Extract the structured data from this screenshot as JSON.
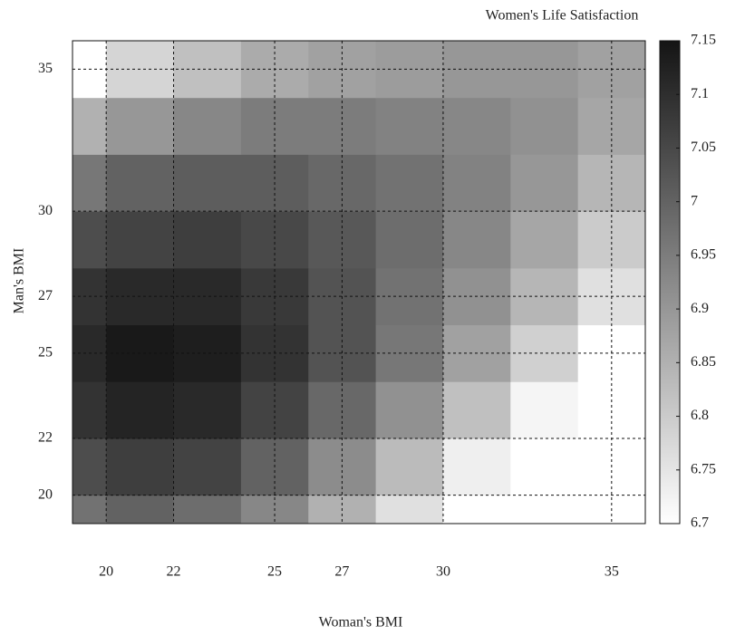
{
  "chart_data": {
    "type": "heatmap",
    "title": "Women's Life Satisfaction",
    "x_label": "Woman's BMI",
    "y_label": "Man's BMI",
    "x": [
      19,
      21,
      23,
      25,
      27,
      29,
      31,
      33,
      35
    ],
    "y": [
      19,
      21,
      23,
      25,
      27,
      29,
      31,
      33,
      35
    ],
    "values": [
      [
        6.97,
        7.0,
        6.98,
        6.93,
        6.85,
        6.76,
        6.67,
        6.6,
        6.55
      ],
      [
        7.04,
        7.07,
        7.06,
        7.0,
        6.92,
        6.83,
        6.73,
        6.65,
        6.6
      ],
      [
        7.09,
        7.12,
        7.11,
        7.06,
        6.99,
        6.91,
        6.82,
        6.72,
        6.66
      ],
      [
        7.11,
        7.14,
        7.13,
        7.09,
        7.03,
        6.96,
        6.88,
        6.79,
        6.7
      ],
      [
        7.09,
        7.11,
        7.11,
        7.08,
        7.03,
        6.97,
        6.91,
        6.84,
        6.76
      ],
      [
        7.04,
        7.06,
        7.07,
        7.05,
        7.02,
        6.98,
        6.93,
        6.87,
        6.8
      ],
      [
        6.96,
        7.0,
        7.01,
        7.01,
        6.99,
        6.97,
        6.94,
        6.9,
        6.84
      ],
      [
        6.85,
        6.9,
        6.93,
        6.95,
        6.95,
        6.94,
        6.93,
        6.91,
        6.87
      ],
      [
        6.7,
        6.78,
        6.82,
        6.86,
        6.88,
        6.89,
        6.9,
        6.9,
        6.88
      ]
    ],
    "xlim": [
      19,
      36
    ],
    "ylim": [
      19,
      36
    ],
    "xticks": [
      20,
      22,
      25,
      27,
      30,
      35
    ],
    "yticks": [
      20,
      22,
      25,
      27,
      30,
      35
    ],
    "clim": [
      6.7,
      7.15
    ],
    "colorbar_ticks": [
      6.7,
      6.75,
      6.8,
      6.85,
      6.9,
      6.95,
      7,
      7.05,
      7.1,
      7.15
    ],
    "grid": true
  }
}
